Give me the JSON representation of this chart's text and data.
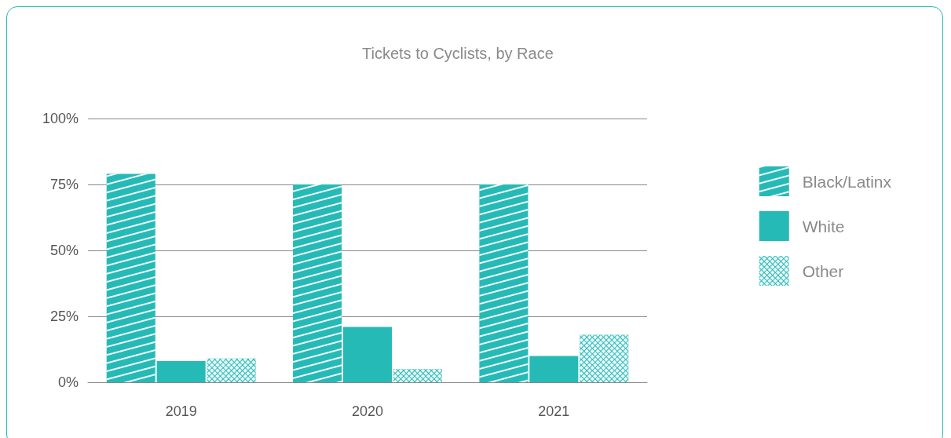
{
  "chart_data": {
    "type": "bar",
    "title": "Tickets to Cyclists, by Race",
    "categories": [
      "2019",
      "2020",
      "2021"
    ],
    "series": [
      {
        "name": "Black/Latinx",
        "color": "#26bab7",
        "values": [
          79,
          75,
          75
        ]
      },
      {
        "name": "White",
        "color": "#26bab7",
        "values": [
          8,
          21,
          10
        ]
      },
      {
        "name": "Other",
        "color": "#26bab7",
        "values": [
          9,
          5,
          18
        ]
      }
    ],
    "ylim": [
      0,
      100
    ],
    "yticks": [
      {
        "value": 0,
        "label": "0%"
      },
      {
        "value": 25,
        "label": "25%"
      },
      {
        "value": 50,
        "label": "50%"
      },
      {
        "value": 75,
        "label": "75%"
      },
      {
        "value": 100,
        "label": "100%"
      }
    ],
    "grid": "y",
    "legend": "right"
  }
}
